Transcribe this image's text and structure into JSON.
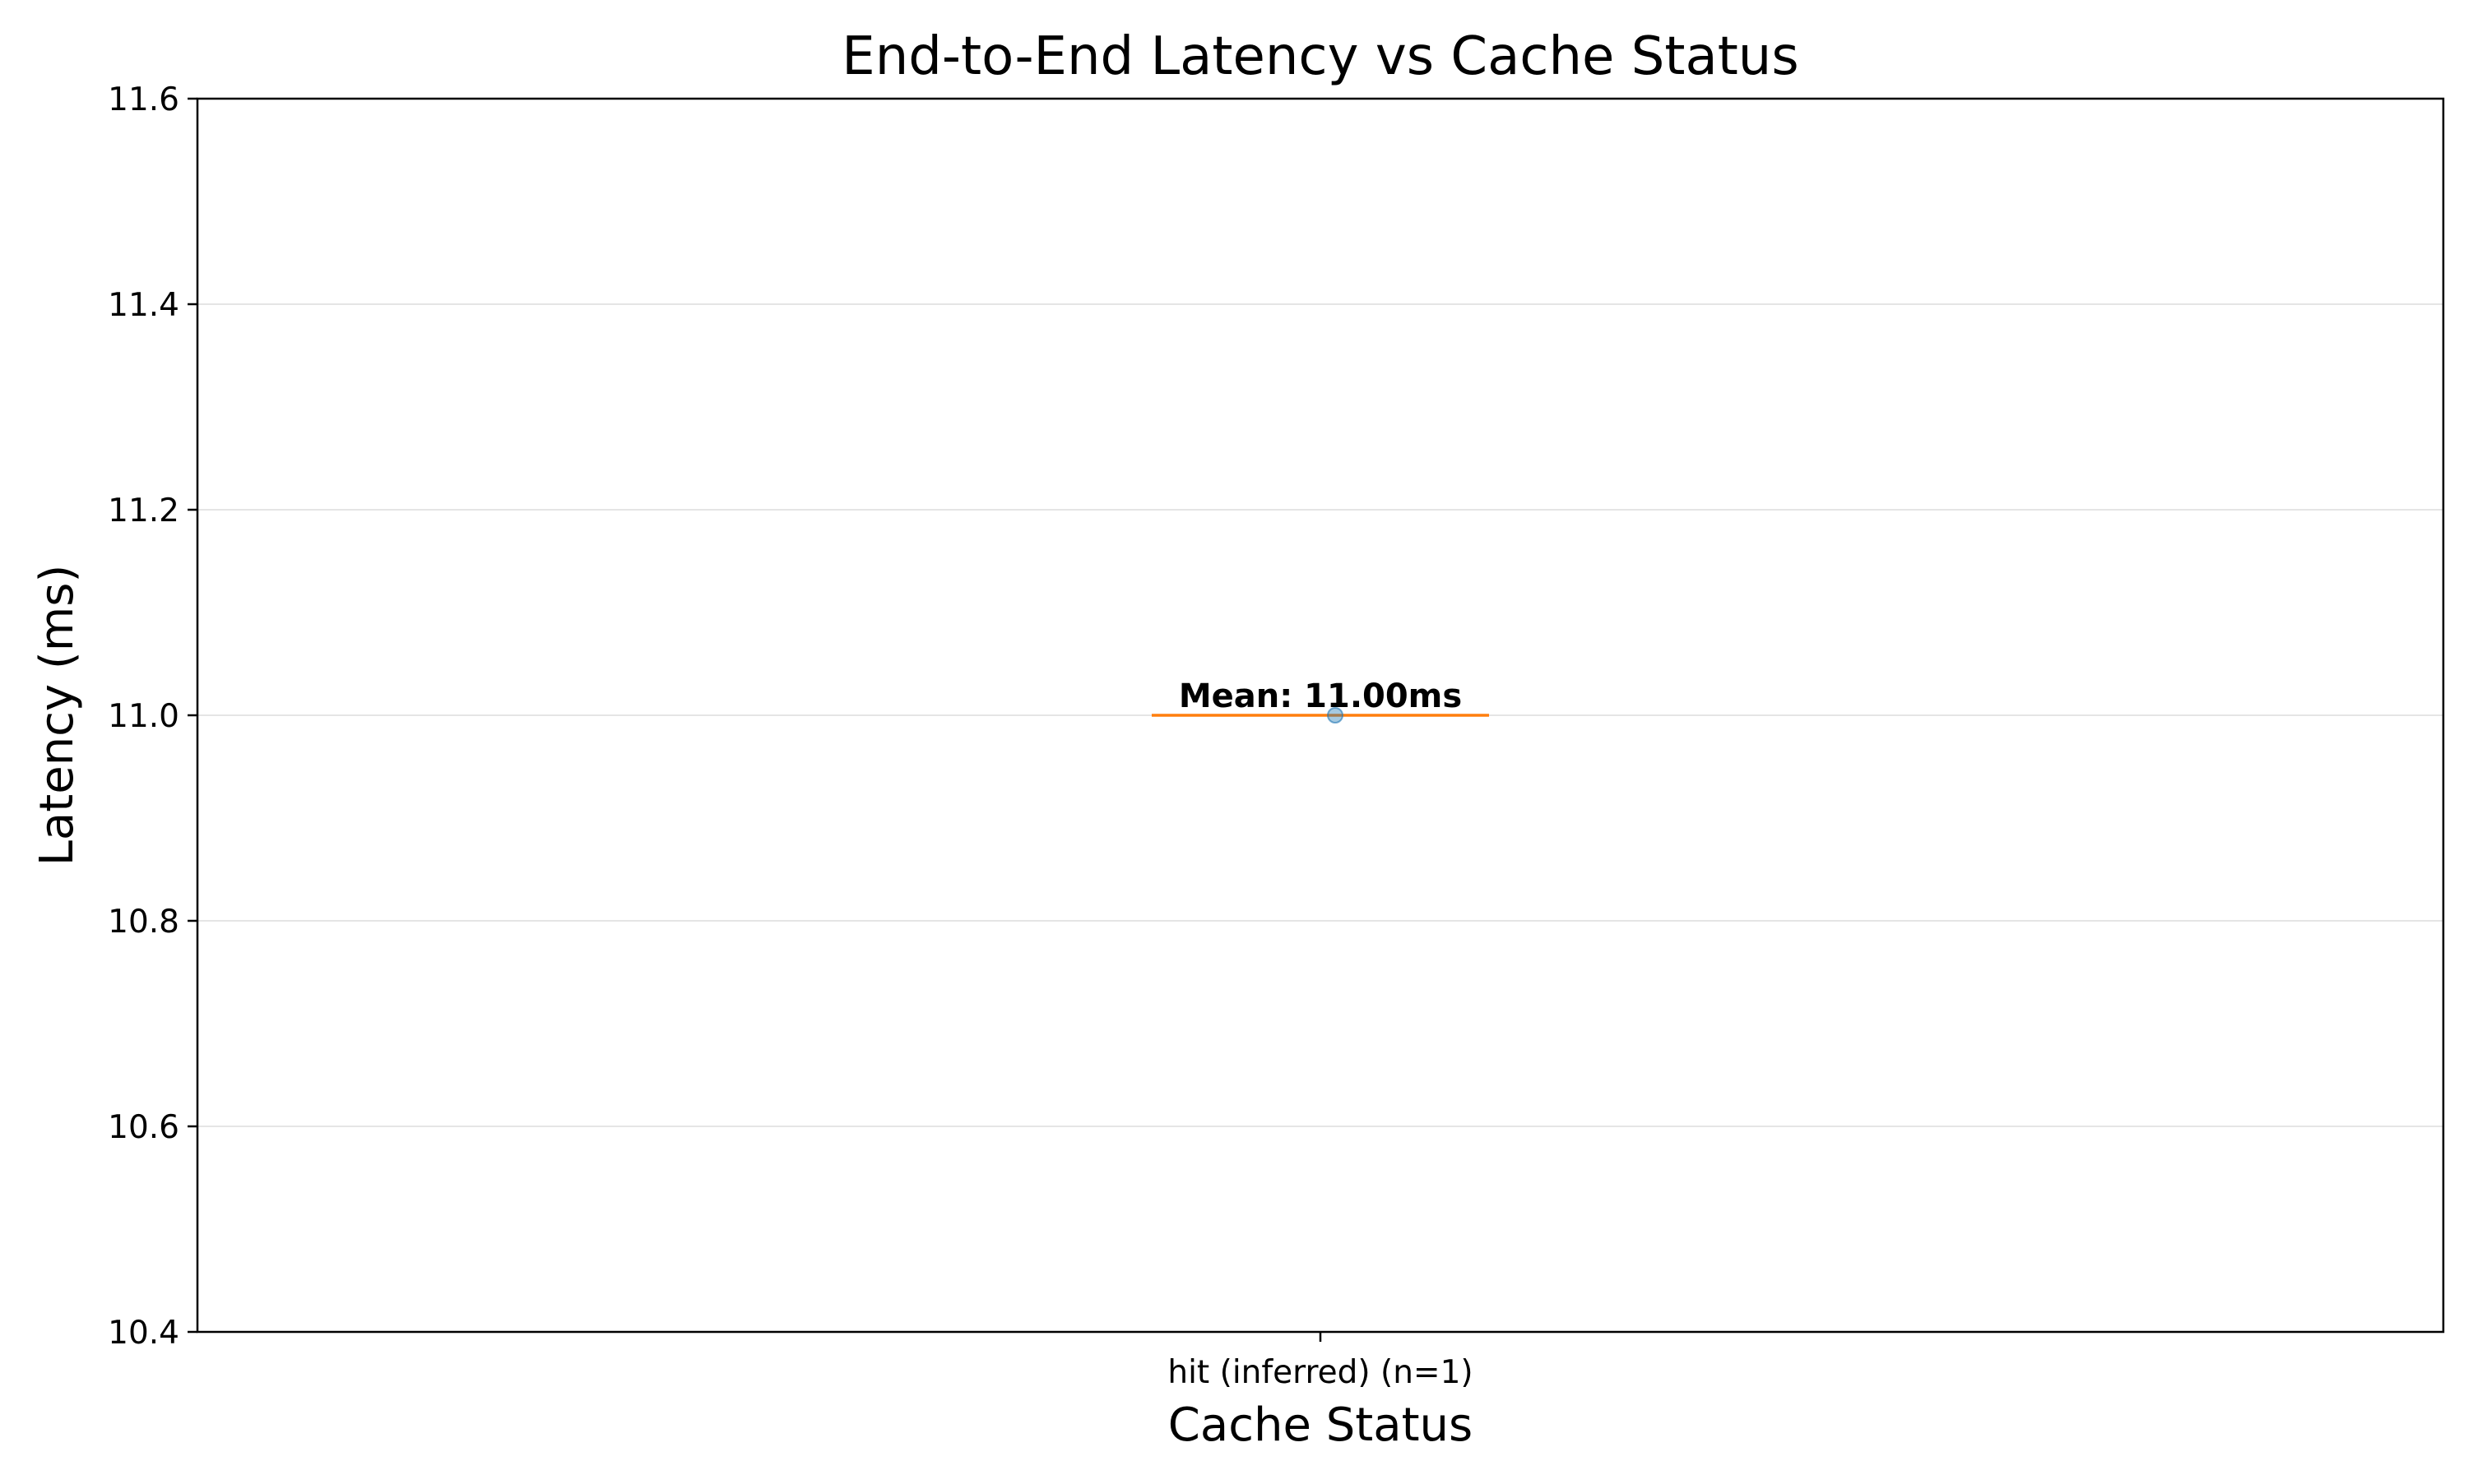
{
  "chart_data": {
    "type": "box",
    "title": "End-to-End Latency vs Cache Status",
    "xlabel": "Cache Status",
    "ylabel": "Latency (ms)",
    "categories": [
      "hit (inferred) (n=1)"
    ],
    "series": [
      {
        "category": "hit (inferred) (n=1)",
        "points": [
          11.0
        ],
        "median": 11.0,
        "q1": 11.0,
        "q3": 11.0,
        "whisker_low": 11.0,
        "whisker_high": 11.0,
        "mean": 11.0,
        "mean_label": "Mean: 11.00ms"
      }
    ],
    "ylim": [
      10.4,
      11.6
    ],
    "yticks": [
      10.4,
      10.6,
      10.8,
      11.0,
      11.2,
      11.4,
      11.6
    ],
    "ytick_labels": [
      "10.4",
      "10.6",
      "10.8",
      "11.0",
      "11.2",
      "11.4",
      "11.6"
    ],
    "grid": "y",
    "colors": {
      "median_line": "#ff7f0e",
      "point": "#1f77b4",
      "grid": "#e5e5e5",
      "axes": "#000000"
    }
  }
}
